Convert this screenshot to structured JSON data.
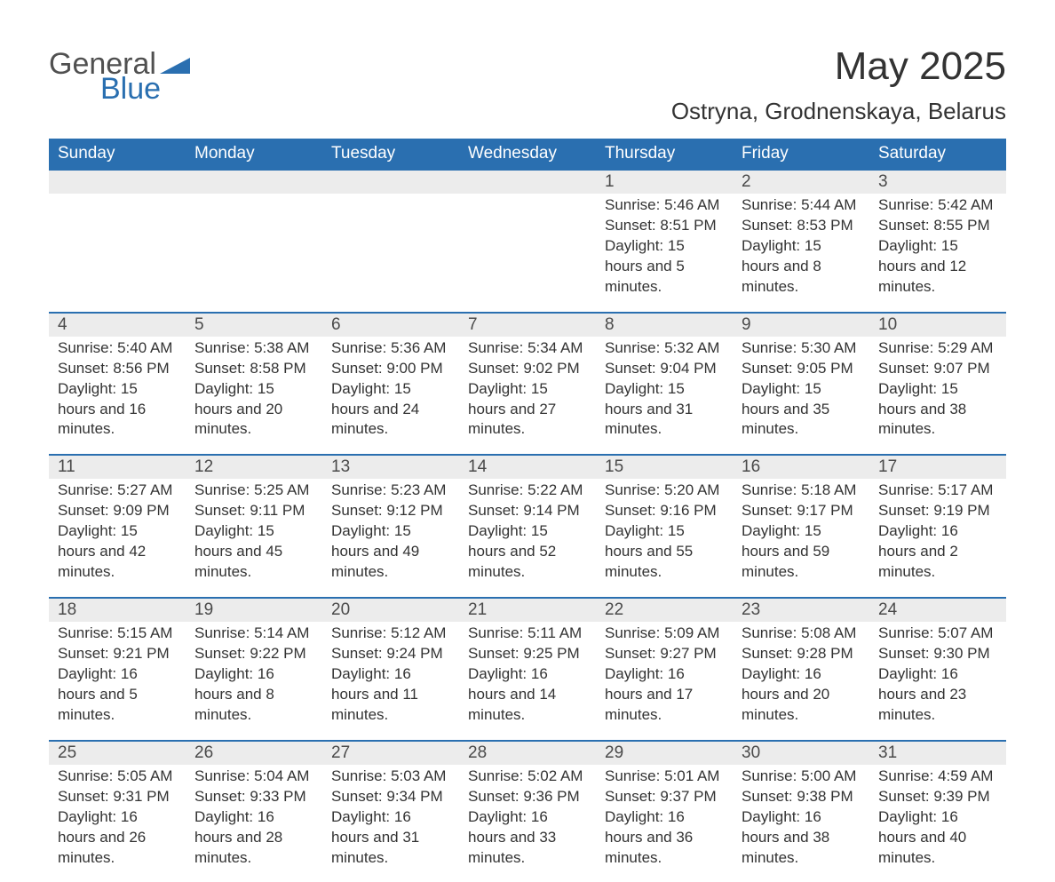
{
  "brand": {
    "word1": "General",
    "word2": "Blue"
  },
  "title": "May 2025",
  "location": "Ostryna, Grodnenskaya, Belarus",
  "colors": {
    "accent": "#2a6fb0",
    "band": "#ececec",
    "text": "#333333",
    "bg": "#ffffff"
  },
  "weekdays": [
    "Sunday",
    "Monday",
    "Tuesday",
    "Wednesday",
    "Thursday",
    "Friday",
    "Saturday"
  ],
  "weeks": [
    [
      null,
      null,
      null,
      null,
      {
        "n": "1",
        "sunrise": "5:46 AM",
        "sunset": "8:51 PM",
        "daylight": "15 hours and 5 minutes."
      },
      {
        "n": "2",
        "sunrise": "5:44 AM",
        "sunset": "8:53 PM",
        "daylight": "15 hours and 8 minutes."
      },
      {
        "n": "3",
        "sunrise": "5:42 AM",
        "sunset": "8:55 PM",
        "daylight": "15 hours and 12 minutes."
      }
    ],
    [
      {
        "n": "4",
        "sunrise": "5:40 AM",
        "sunset": "8:56 PM",
        "daylight": "15 hours and 16 minutes."
      },
      {
        "n": "5",
        "sunrise": "5:38 AM",
        "sunset": "8:58 PM",
        "daylight": "15 hours and 20 minutes."
      },
      {
        "n": "6",
        "sunrise": "5:36 AM",
        "sunset": "9:00 PM",
        "daylight": "15 hours and 24 minutes."
      },
      {
        "n": "7",
        "sunrise": "5:34 AM",
        "sunset": "9:02 PM",
        "daylight": "15 hours and 27 minutes."
      },
      {
        "n": "8",
        "sunrise": "5:32 AM",
        "sunset": "9:04 PM",
        "daylight": "15 hours and 31 minutes."
      },
      {
        "n": "9",
        "sunrise": "5:30 AM",
        "sunset": "9:05 PM",
        "daylight": "15 hours and 35 minutes."
      },
      {
        "n": "10",
        "sunrise": "5:29 AM",
        "sunset": "9:07 PM",
        "daylight": "15 hours and 38 minutes."
      }
    ],
    [
      {
        "n": "11",
        "sunrise": "5:27 AM",
        "sunset": "9:09 PM",
        "daylight": "15 hours and 42 minutes."
      },
      {
        "n": "12",
        "sunrise": "5:25 AM",
        "sunset": "9:11 PM",
        "daylight": "15 hours and 45 minutes."
      },
      {
        "n": "13",
        "sunrise": "5:23 AM",
        "sunset": "9:12 PM",
        "daylight": "15 hours and 49 minutes."
      },
      {
        "n": "14",
        "sunrise": "5:22 AM",
        "sunset": "9:14 PM",
        "daylight": "15 hours and 52 minutes."
      },
      {
        "n": "15",
        "sunrise": "5:20 AM",
        "sunset": "9:16 PM",
        "daylight": "15 hours and 55 minutes."
      },
      {
        "n": "16",
        "sunrise": "5:18 AM",
        "sunset": "9:17 PM",
        "daylight": "15 hours and 59 minutes."
      },
      {
        "n": "17",
        "sunrise": "5:17 AM",
        "sunset": "9:19 PM",
        "daylight": "16 hours and 2 minutes."
      }
    ],
    [
      {
        "n": "18",
        "sunrise": "5:15 AM",
        "sunset": "9:21 PM",
        "daylight": "16 hours and 5 minutes."
      },
      {
        "n": "19",
        "sunrise": "5:14 AM",
        "sunset": "9:22 PM",
        "daylight": "16 hours and 8 minutes."
      },
      {
        "n": "20",
        "sunrise": "5:12 AM",
        "sunset": "9:24 PM",
        "daylight": "16 hours and 11 minutes."
      },
      {
        "n": "21",
        "sunrise": "5:11 AM",
        "sunset": "9:25 PM",
        "daylight": "16 hours and 14 minutes."
      },
      {
        "n": "22",
        "sunrise": "5:09 AM",
        "sunset": "9:27 PM",
        "daylight": "16 hours and 17 minutes."
      },
      {
        "n": "23",
        "sunrise": "5:08 AM",
        "sunset": "9:28 PM",
        "daylight": "16 hours and 20 minutes."
      },
      {
        "n": "24",
        "sunrise": "5:07 AM",
        "sunset": "9:30 PM",
        "daylight": "16 hours and 23 minutes."
      }
    ],
    [
      {
        "n": "25",
        "sunrise": "5:05 AM",
        "sunset": "9:31 PM",
        "daylight": "16 hours and 26 minutes."
      },
      {
        "n": "26",
        "sunrise": "5:04 AM",
        "sunset": "9:33 PM",
        "daylight": "16 hours and 28 minutes."
      },
      {
        "n": "27",
        "sunrise": "5:03 AM",
        "sunset": "9:34 PM",
        "daylight": "16 hours and 31 minutes."
      },
      {
        "n": "28",
        "sunrise": "5:02 AM",
        "sunset": "9:36 PM",
        "daylight": "16 hours and 33 minutes."
      },
      {
        "n": "29",
        "sunrise": "5:01 AM",
        "sunset": "9:37 PM",
        "daylight": "16 hours and 36 minutes."
      },
      {
        "n": "30",
        "sunrise": "5:00 AM",
        "sunset": "9:38 PM",
        "daylight": "16 hours and 38 minutes."
      },
      {
        "n": "31",
        "sunrise": "4:59 AM",
        "sunset": "9:39 PM",
        "daylight": "16 hours and 40 minutes."
      }
    ]
  ],
  "labels": {
    "sunrise": "Sunrise: ",
    "sunset": "Sunset: ",
    "daylight": "Daylight: "
  }
}
